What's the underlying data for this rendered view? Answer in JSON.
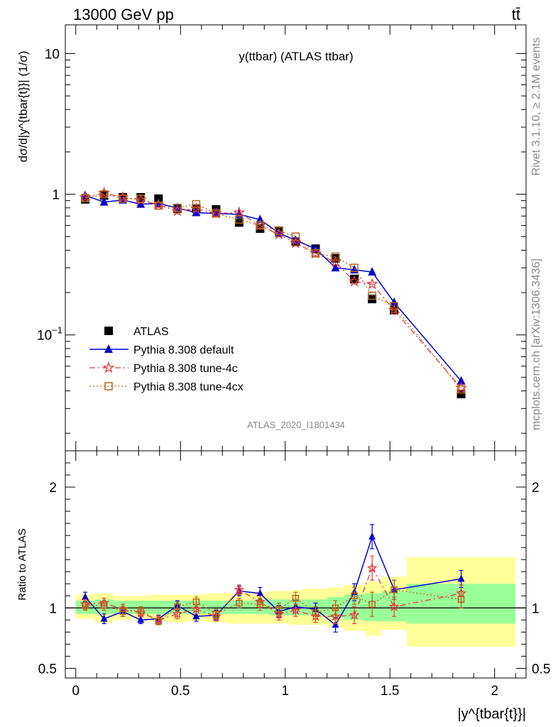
{
  "header": {
    "left": "13000 GeV pp",
    "right": "tt̄"
  },
  "side_text": {
    "rivet": "Rivet 3.1.10, ≥ 2.1M events",
    "mcplots": "mcplots.cern.ch [arXiv:1306.3436]"
  },
  "plot_title": "y(ttbar) (ATLAS ttbar)",
  "analysis_id": "ATLAS_2020_I1801434",
  "colors": {
    "data": "#000000",
    "default": "#0000cc",
    "tune4c": "#e8383c",
    "tune4cx": "#b5651d",
    "band_inner": "#99ff99",
    "band_outer": "#ffff99"
  },
  "chart_data": [
    {
      "type": "scatter",
      "panel": "main",
      "ylabel": "dσ/d|y^{tbar{t}}| (1/σ)",
      "yscale": "log",
      "xlim": [
        -0.05,
        2.15
      ],
      "ylim": [
        0.015,
        16
      ],
      "y_ticks": [
        "10^-1",
        "1",
        "10"
      ],
      "legend_position": "lower-left",
      "x": [
        0.045,
        0.135,
        0.225,
        0.31,
        0.395,
        0.485,
        0.575,
        0.67,
        0.78,
        0.88,
        0.97,
        1.05,
        1.145,
        1.24,
        1.33,
        1.415,
        1.52,
        1.84
      ],
      "series": [
        {
          "name": "ATLAS",
          "key": "data",
          "marker": "square",
          "values": [
            0.92,
            0.98,
            0.95,
            0.95,
            0.93,
            0.79,
            0.79,
            0.78,
            0.63,
            0.57,
            0.55,
            0.46,
            0.41,
            0.35,
            0.25,
            0.18,
            0.15,
            0.038
          ]
        },
        {
          "name": "Pythia 8.308 default",
          "key": "default",
          "marker": "triangle",
          "values": [
            0.98,
            0.88,
            0.91,
            0.85,
            0.86,
            0.8,
            0.74,
            0.73,
            0.72,
            0.66,
            0.53,
            0.47,
            0.41,
            0.3,
            0.29,
            0.28,
            0.17,
            0.047
          ]
        },
        {
          "name": "Pythia 8.308 tune-4c",
          "key": "tune4c",
          "marker": "star",
          "values": [
            0.95,
            1.02,
            0.95,
            0.91,
            0.84,
            0.76,
            0.79,
            0.73,
            0.74,
            0.6,
            0.52,
            0.45,
            0.38,
            0.33,
            0.24,
            0.23,
            0.15,
            0.042
          ]
        },
        {
          "name": "Pythia 8.308 tune-4cx",
          "key": "tune4cx",
          "marker": "open-square",
          "values": [
            0.94,
            1.0,
            0.93,
            0.93,
            0.83,
            0.8,
            0.85,
            0.73,
            0.66,
            0.6,
            0.55,
            0.5,
            0.38,
            0.36,
            0.3,
            0.19,
            0.16,
            0.041
          ]
        }
      ]
    },
    {
      "type": "scatter",
      "panel": "ratio",
      "ylabel": "Ratio to ATLAS",
      "xlabel": "|y^{tbar{t}}|",
      "xlim": [
        -0.05,
        2.15
      ],
      "ylim": [
        0.42,
        2.3
      ],
      "x_ticks": [
        "0",
        "0.5",
        "1",
        "1.5",
        "2"
      ],
      "y_ticks": [
        "0.5",
        "1",
        "2"
      ],
      "x": [
        0.045,
        0.135,
        0.225,
        0.31,
        0.395,
        0.485,
        0.575,
        0.67,
        0.78,
        0.88,
        0.97,
        1.05,
        1.145,
        1.24,
        1.33,
        1.415,
        1.52,
        1.84
      ],
      "bin_edges": [
        0.0,
        0.09,
        0.18,
        0.27,
        0.35,
        0.44,
        0.53,
        0.62,
        0.72,
        0.84,
        0.92,
        1.02,
        1.09,
        1.2,
        1.28,
        1.38,
        1.46,
        1.58,
        2.1
      ],
      "band_inner": [
        [
          0.95,
          1.06
        ],
        [
          0.95,
          1.07
        ],
        [
          0.95,
          1.06
        ],
        [
          0.95,
          1.06
        ],
        [
          0.95,
          1.06
        ],
        [
          0.95,
          1.06
        ],
        [
          0.95,
          1.06
        ],
        [
          0.95,
          1.06
        ],
        [
          0.95,
          1.06
        ],
        [
          0.95,
          1.07
        ],
        [
          0.94,
          1.07
        ],
        [
          0.94,
          1.07
        ],
        [
          0.94,
          1.07
        ],
        [
          0.92,
          1.09
        ],
        [
          0.9,
          1.11
        ],
        [
          0.89,
          1.12
        ],
        [
          0.89,
          1.14
        ],
        [
          0.87,
          1.2
        ]
      ],
      "band_outer": [
        [
          0.91,
          1.11
        ],
        [
          0.88,
          1.12
        ],
        [
          0.9,
          1.1
        ],
        [
          0.91,
          1.1
        ],
        [
          0.89,
          1.11
        ],
        [
          0.88,
          1.11
        ],
        [
          0.89,
          1.11
        ],
        [
          0.88,
          1.12
        ],
        [
          0.87,
          1.12
        ],
        [
          0.87,
          1.13
        ],
        [
          0.87,
          1.14
        ],
        [
          0.86,
          1.15
        ],
        [
          0.86,
          1.16
        ],
        [
          0.84,
          1.17
        ],
        [
          0.81,
          1.19
        ],
        [
          0.77,
          1.22
        ],
        [
          0.82,
          1.26
        ],
        [
          0.68,
          1.42
        ]
      ],
      "series": [
        {
          "name": "Pythia 8.308 default",
          "key": "default",
          "marker": "triangle",
          "values": [
            1.09,
            0.91,
            0.97,
            0.9,
            0.91,
            1.02,
            0.93,
            0.94,
            1.14,
            1.12,
            0.97,
            1.01,
            0.99,
            0.86,
            1.13,
            1.59,
            1.15,
            1.24
          ],
          "errors": [
            0.04,
            0.04,
            0.04,
            0.03,
            0.03,
            0.04,
            0.04,
            0.04,
            0.04,
            0.05,
            0.05,
            0.05,
            0.05,
            0.06,
            0.07,
            0.1,
            0.08,
            0.07
          ]
        },
        {
          "name": "Pythia 8.308 tune-4c",
          "key": "tune4c",
          "marker": "star",
          "values": [
            1.03,
            1.04,
            0.99,
            0.96,
            0.9,
            0.95,
            0.99,
            0.93,
            1.15,
            1.05,
            0.95,
            0.98,
            0.93,
            0.93,
            0.94,
            1.33,
            1.01,
            1.12
          ],
          "errors": [
            0.04,
            0.04,
            0.04,
            0.03,
            0.03,
            0.04,
            0.04,
            0.04,
            0.04,
            0.05,
            0.05,
            0.05,
            0.05,
            0.06,
            0.07,
            0.1,
            0.08,
            0.07
          ]
        },
        {
          "name": "Pythia 8.308 tune-4cx",
          "key": "tune4cx",
          "marker": "open-square",
          "values": [
            1.02,
            1.02,
            0.97,
            0.98,
            0.89,
            1.01,
            1.05,
            0.95,
            1.04,
            1.03,
            0.99,
            1.08,
            0.96,
            1.0,
            1.1,
            1.03,
            1.15,
            1.07
          ],
          "errors": [
            0.04,
            0.04,
            0.04,
            0.03,
            0.03,
            0.04,
            0.04,
            0.04,
            0.04,
            0.05,
            0.05,
            0.05,
            0.05,
            0.06,
            0.07,
            0.1,
            0.08,
            0.07
          ]
        }
      ]
    }
  ]
}
